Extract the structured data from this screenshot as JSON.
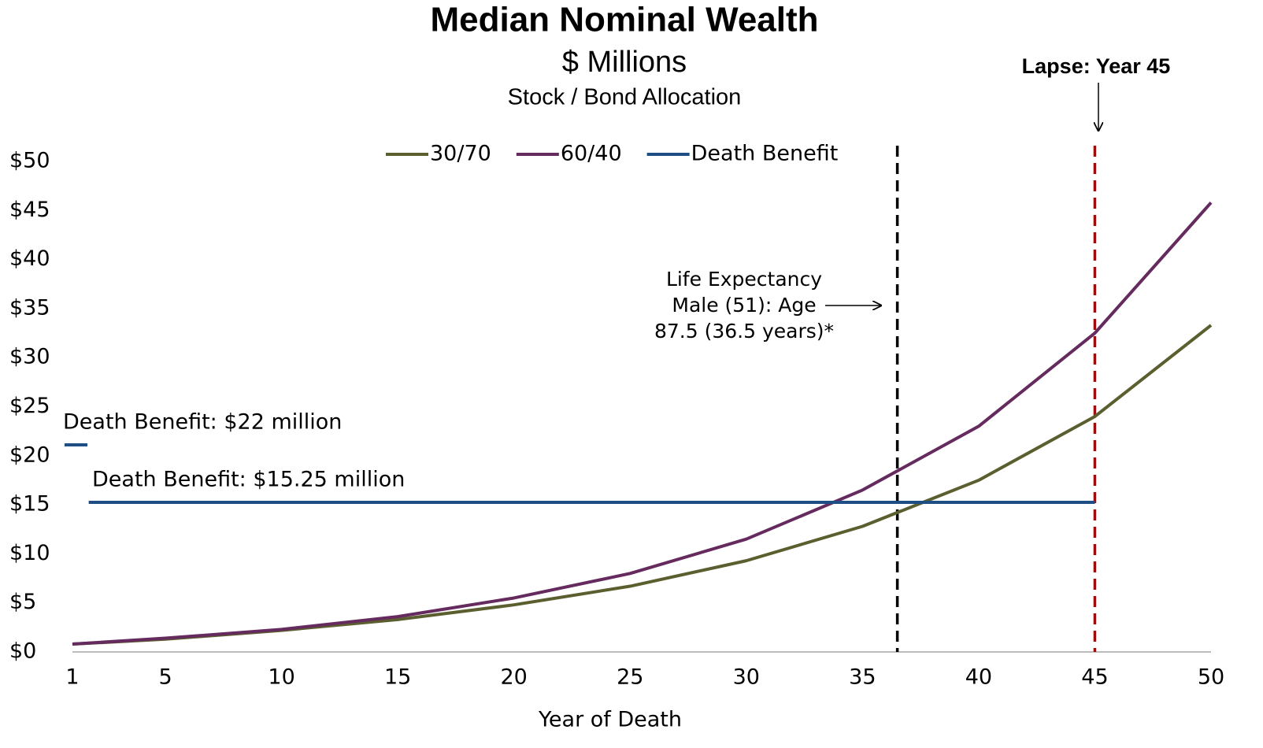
{
  "chart_data": {
    "type": "line",
    "title": "Median Nominal Wealth",
    "subtitle": "$ Millions",
    "subtitle2": "Stock / Bond Allocation",
    "x_label": "Year of Death",
    "x": [
      1,
      5,
      10,
      15,
      20,
      25,
      30,
      35,
      40,
      45,
      50
    ],
    "series": [
      {
        "name": "30/70",
        "color": "#5b5e2e",
        "values": [
          0.8,
          1.3,
          2.2,
          3.3,
          4.8,
          6.7,
          9.3,
          12.8,
          17.5,
          24,
          33.3
        ]
      },
      {
        "name": "60/40",
        "color": "#652a5e",
        "values": [
          0.8,
          1.4,
          2.3,
          3.6,
          5.5,
          8.0,
          11.5,
          16.5,
          23,
          32.5,
          45.8
        ]
      },
      {
        "name": "Death Benefit",
        "color": "#1f4e85",
        "x": [
          1.7,
          45
        ],
        "values": [
          15.25,
          15.25
        ]
      }
    ],
    "xlim": [
      1,
      50
    ],
    "xticks": [
      1,
      5,
      10,
      15,
      20,
      25,
      30,
      35,
      40,
      45,
      50
    ],
    "ylim": [
      0,
      50
    ],
    "yticks": [
      {
        "value": 0,
        "label": "$0"
      },
      {
        "value": 5,
        "label": "$5"
      },
      {
        "value": 10,
        "label": "$10"
      },
      {
        "value": 15,
        "label": "$15"
      },
      {
        "value": 20,
        "label": "$20"
      },
      {
        "value": 25,
        "label": "$25"
      },
      {
        "value": 30,
        "label": "$30"
      },
      {
        "value": 35,
        "label": "$35"
      },
      {
        "value": 40,
        "label": "$40"
      },
      {
        "value": 45,
        "label": "$45"
      },
      {
        "value": 50,
        "label": "$50"
      }
    ],
    "vlines": [
      {
        "x": 36.5,
        "color": "#000000"
      },
      {
        "x": 45,
        "color": "#c00000"
      }
    ],
    "legend": "top",
    "annotations": {
      "lapse": "Lapse: Year 45",
      "life_expectancy": [
        "Life Expectancy",
        "Male (51): Age",
        "87.5 (36.5 years)*"
      ],
      "benefit_22": "Death Benefit: $22 million",
      "benefit_1525": "Death Benefit: $15.25 million"
    }
  }
}
